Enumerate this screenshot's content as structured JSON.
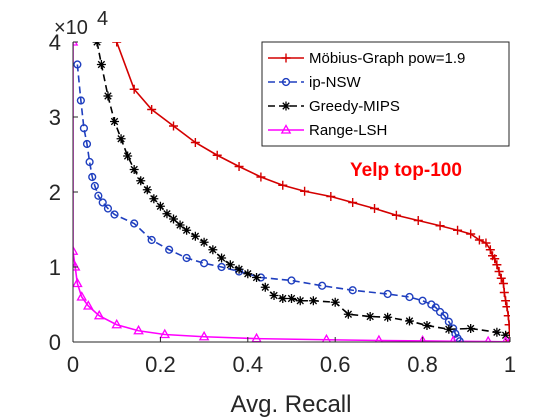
{
  "chart_data": {
    "type": "line",
    "xlabel": "Avg. Recall",
    "ylabel": "",
    "xlim": [
      0,
      1
    ],
    "ylim": [
      0,
      40000
    ],
    "xticks": [
      "0",
      "0.2",
      "0.4",
      "0.6",
      "0.8",
      "1"
    ],
    "yticks": [
      "0",
      "1",
      "2",
      "3",
      "4"
    ],
    "y_exponent_label": "×10",
    "y_exponent_power": "4",
    "grid": false,
    "legend_position": "top-right",
    "annotation": "Yelp top-100",
    "series": [
      {
        "name": "Möbius-Graph pow=1.9",
        "color": "#d40000",
        "dash": "solid",
        "marker": "plus",
        "points": [
          [
            0.1,
            40000
          ],
          [
            0.14,
            33700
          ],
          [
            0.18,
            31000
          ],
          [
            0.23,
            28800
          ],
          [
            0.28,
            26600
          ],
          [
            0.33,
            24900
          ],
          [
            0.38,
            23400
          ],
          [
            0.43,
            22000
          ],
          [
            0.48,
            20900
          ],
          [
            0.53,
            20100
          ],
          [
            0.59,
            19400
          ],
          [
            0.64,
            18600
          ],
          [
            0.69,
            17800
          ],
          [
            0.74,
            16900
          ],
          [
            0.79,
            16200
          ],
          [
            0.84,
            15500
          ],
          [
            0.88,
            14900
          ],
          [
            0.91,
            14400
          ],
          [
            0.93,
            13600
          ],
          [
            0.945,
            13200
          ],
          [
            0.955,
            12300
          ],
          [
            0.96,
            11500
          ],
          [
            0.965,
            11100
          ],
          [
            0.97,
            10300
          ],
          [
            0.975,
            9400
          ],
          [
            0.98,
            8500
          ],
          [
            0.985,
            7800
          ],
          [
            0.987,
            6600
          ],
          [
            0.99,
            5500
          ],
          [
            0.993,
            4700
          ],
          [
            0.996,
            3500
          ],
          [
            0.998,
            2300
          ],
          [
            0.999,
            1200
          ],
          [
            1.0,
            200
          ]
        ]
      },
      {
        "name": "ip-NSW",
        "color": "#1f3fbf",
        "dash": "dashed",
        "marker": "circle",
        "points": [
          [
            0.01,
            37000
          ],
          [
            0.018,
            32200
          ],
          [
            0.025,
            28500
          ],
          [
            0.032,
            26400
          ],
          [
            0.038,
            24000
          ],
          [
            0.044,
            22000
          ],
          [
            0.05,
            20800
          ],
          [
            0.058,
            19500
          ],
          [
            0.068,
            18600
          ],
          [
            0.08,
            17800
          ],
          [
            0.095,
            17000
          ],
          [
            0.14,
            15800
          ],
          [
            0.18,
            13600
          ],
          [
            0.22,
            12300
          ],
          [
            0.26,
            11200
          ],
          [
            0.3,
            10500
          ],
          [
            0.34,
            10000
          ],
          [
            0.38,
            9400
          ],
          [
            0.43,
            8600
          ],
          [
            0.5,
            8200
          ],
          [
            0.57,
            7500
          ],
          [
            0.64,
            6900
          ],
          [
            0.72,
            6400
          ],
          [
            0.77,
            6000
          ],
          [
            0.8,
            5500
          ],
          [
            0.82,
            5000
          ],
          [
            0.83,
            4600
          ],
          [
            0.84,
            4000
          ],
          [
            0.85,
            3500
          ],
          [
            0.86,
            2700
          ],
          [
            0.87,
            1800
          ],
          [
            0.875,
            1100
          ],
          [
            0.88,
            500
          ],
          [
            0.885,
            100
          ]
        ]
      },
      {
        "name": "Greedy-MIPS",
        "color": "#000000",
        "dash": "dashed",
        "marker": "asterisk",
        "points": [
          [
            0.055,
            40000
          ],
          [
            0.065,
            37000
          ],
          [
            0.08,
            32800
          ],
          [
            0.095,
            29400
          ],
          [
            0.11,
            27100
          ],
          [
            0.125,
            24800
          ],
          [
            0.14,
            23000
          ],
          [
            0.155,
            21500
          ],
          [
            0.17,
            20300
          ],
          [
            0.185,
            19100
          ],
          [
            0.2,
            18100
          ],
          [
            0.215,
            17100
          ],
          [
            0.23,
            16400
          ],
          [
            0.245,
            15600
          ],
          [
            0.26,
            14900
          ],
          [
            0.28,
            14100
          ],
          [
            0.3,
            13300
          ],
          [
            0.32,
            12300
          ],
          [
            0.34,
            11200
          ],
          [
            0.36,
            10300
          ],
          [
            0.38,
            9700
          ],
          [
            0.4,
            9100
          ],
          [
            0.42,
            8600
          ],
          [
            0.44,
            7300
          ],
          [
            0.46,
            6200
          ],
          [
            0.48,
            5800
          ],
          [
            0.5,
            5800
          ],
          [
            0.52,
            5500
          ],
          [
            0.55,
            5500
          ],
          [
            0.6,
            5300
          ],
          [
            0.63,
            3700
          ],
          [
            0.68,
            3400
          ],
          [
            0.72,
            3300
          ],
          [
            0.77,
            2800
          ],
          [
            0.81,
            2200
          ],
          [
            0.86,
            1700
          ],
          [
            0.91,
            1800
          ],
          [
            0.97,
            1300
          ],
          [
            0.99,
            900
          ]
        ]
      },
      {
        "name": "Range-LSH",
        "color": "#ff00ff",
        "dash": "solid",
        "marker": "triangle",
        "points": [
          [
            0.0,
            40000
          ],
          [
            0.0,
            12100
          ],
          [
            0.005,
            10000
          ],
          [
            0.01,
            7800
          ],
          [
            0.02,
            6000
          ],
          [
            0.035,
            4800
          ],
          [
            0.06,
            3500
          ],
          [
            0.1,
            2300
          ],
          [
            0.15,
            1500
          ],
          [
            0.21,
            1000
          ],
          [
            0.3,
            700
          ],
          [
            0.42,
            450
          ],
          [
            0.58,
            300
          ],
          [
            0.7,
            200
          ],
          [
            0.8,
            150
          ],
          [
            0.87,
            100
          ],
          [
            0.95,
            60
          ],
          [
            0.99,
            30
          ],
          [
            1.0,
            10
          ]
        ]
      }
    ]
  }
}
